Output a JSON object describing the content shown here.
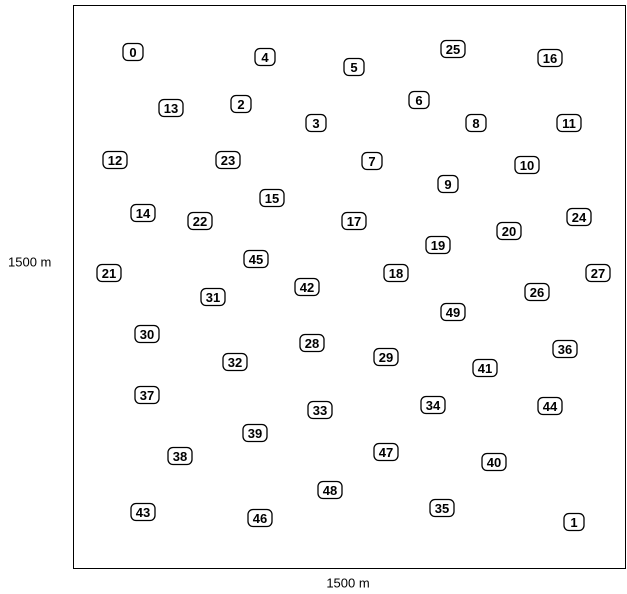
{
  "axes": {
    "x_label": "1500 m",
    "y_label": "1500 m"
  },
  "nodes": [
    {
      "label": "0"
    },
    {
      "label": "1"
    },
    {
      "label": "2"
    },
    {
      "label": "3"
    },
    {
      "label": "4"
    },
    {
      "label": "5"
    },
    {
      "label": "6"
    },
    {
      "label": "7"
    },
    {
      "label": "8"
    },
    {
      "label": "9"
    },
    {
      "label": "10"
    },
    {
      "label": "11"
    },
    {
      "label": "12"
    },
    {
      "label": "13"
    },
    {
      "label": "14"
    },
    {
      "label": "15"
    },
    {
      "label": "16"
    },
    {
      "label": "17"
    },
    {
      "label": "18"
    },
    {
      "label": "19"
    },
    {
      "label": "20"
    },
    {
      "label": "21"
    },
    {
      "label": "22"
    },
    {
      "label": "23"
    },
    {
      "label": "24"
    },
    {
      "label": "25"
    },
    {
      "label": "26"
    },
    {
      "label": "27"
    },
    {
      "label": "28"
    },
    {
      "label": "29"
    },
    {
      "label": "30"
    },
    {
      "label": "31"
    },
    {
      "label": "32"
    },
    {
      "label": "33"
    },
    {
      "label": "34"
    },
    {
      "label": "35"
    },
    {
      "label": "36"
    },
    {
      "label": "37"
    },
    {
      "label": "38"
    },
    {
      "label": "39"
    },
    {
      "label": "40"
    },
    {
      "label": "41"
    },
    {
      "label": "42"
    },
    {
      "label": "43"
    },
    {
      "label": "44"
    },
    {
      "label": "45"
    },
    {
      "label": "46"
    },
    {
      "label": "47"
    },
    {
      "label": "48"
    },
    {
      "label": "49"
    }
  ]
}
